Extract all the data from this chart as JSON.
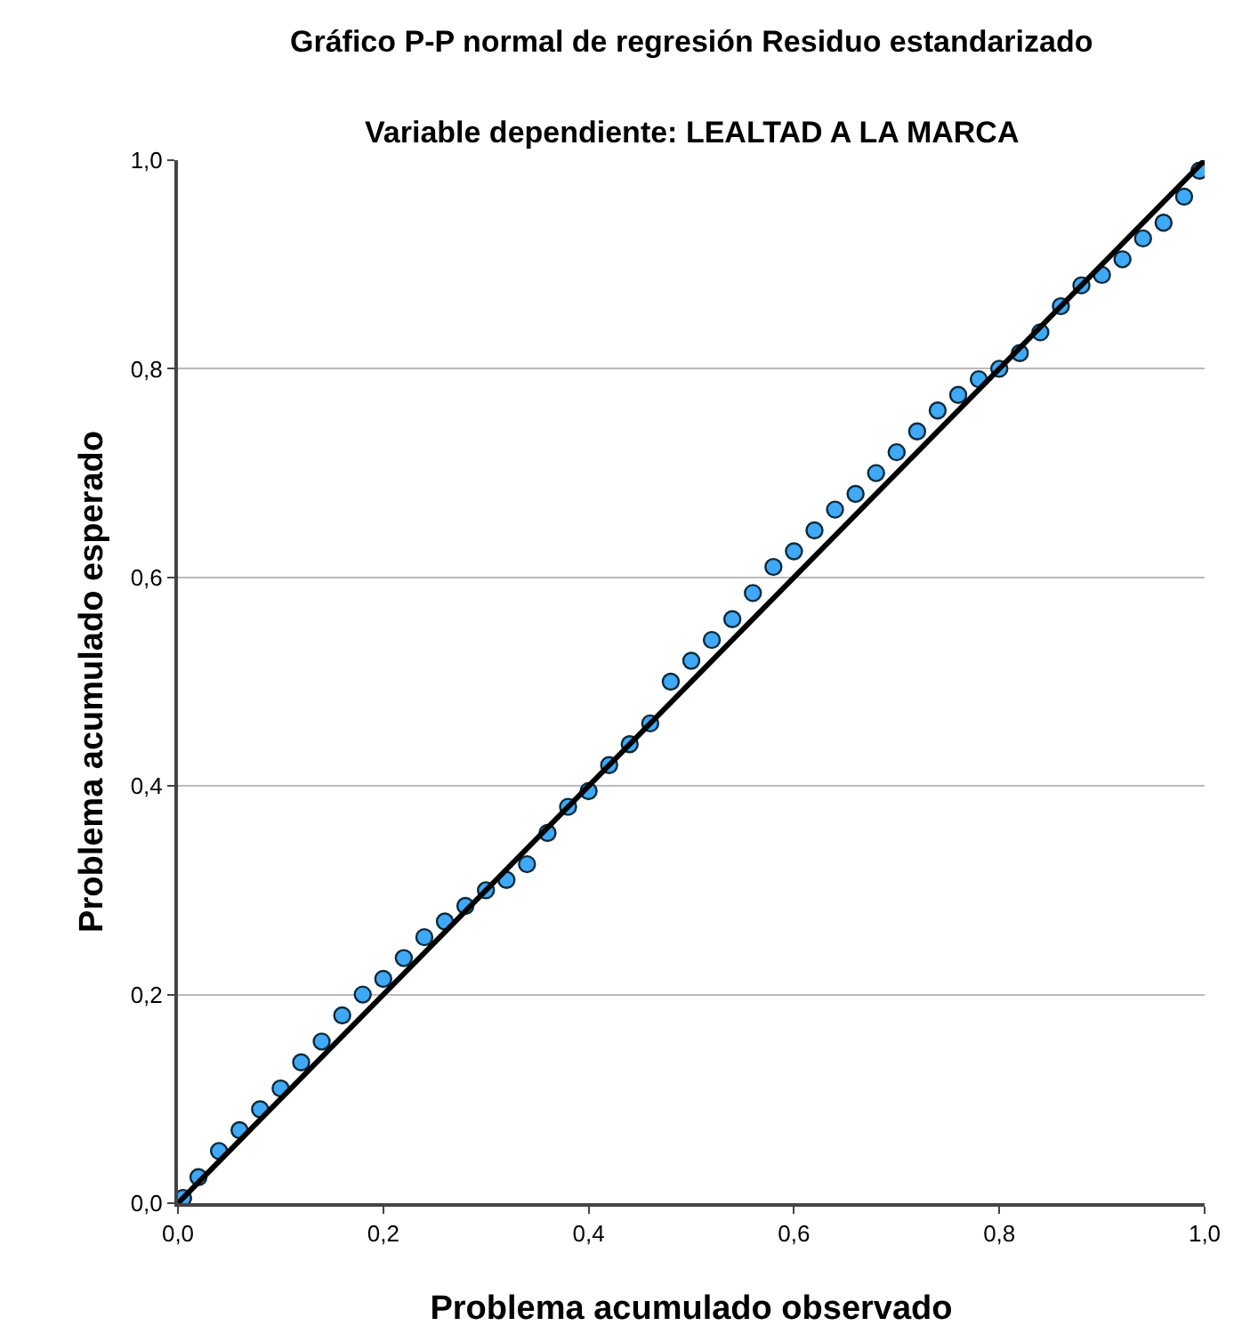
{
  "chart_data": {
    "type": "scatter",
    "title": "Gráfico P-P normal de regresión Residuo estandarizado",
    "subtitle": "Variable dependiente: LEALTAD A LA MARCA",
    "xlabel": "Problema acumulado observado",
    "ylabel": "Problema acumulado esperado",
    "xlim": [
      0,
      1
    ],
    "ylim": [
      0,
      1
    ],
    "xticks": [
      {
        "value": 0,
        "label": "0,0"
      },
      {
        "value": 0.2,
        "label": "0,2"
      },
      {
        "value": 0.4,
        "label": "0,4"
      },
      {
        "value": 0.6,
        "label": "0,6"
      },
      {
        "value": 0.8,
        "label": "0,8"
      },
      {
        "value": 1,
        "label": "1,0"
      }
    ],
    "yticks": [
      {
        "value": 0,
        "label": "0,0"
      },
      {
        "value": 0.2,
        "label": "0,2"
      },
      {
        "value": 0.4,
        "label": "0,4"
      },
      {
        "value": 0.6,
        "label": "0,6"
      },
      {
        "value": 0.8,
        "label": "0,8"
      },
      {
        "value": 1,
        "label": "1,0"
      }
    ],
    "grid": "y",
    "series": [
      {
        "marker": "circle",
        "color": "#3fa9f5",
        "x": [
          0.005,
          0.02,
          0.04,
          0.06,
          0.08,
          0.1,
          0.12,
          0.14,
          0.16,
          0.18,
          0.2,
          0.22,
          0.24,
          0.26,
          0.28,
          0.3,
          0.32,
          0.34,
          0.36,
          0.38,
          0.4,
          0.42,
          0.44,
          0.46,
          0.48,
          0.5,
          0.52,
          0.54,
          0.56,
          0.58,
          0.6,
          0.62,
          0.64,
          0.66,
          0.68,
          0.7,
          0.72,
          0.74,
          0.76,
          0.78,
          0.8,
          0.82,
          0.84,
          0.86,
          0.88,
          0.9,
          0.92,
          0.94,
          0.96,
          0.98,
          0.995
        ],
        "values": [
          0.005,
          0.025,
          0.05,
          0.07,
          0.09,
          0.11,
          0.135,
          0.155,
          0.18,
          0.2,
          0.215,
          0.235,
          0.255,
          0.27,
          0.285,
          0.3,
          0.31,
          0.325,
          0.355,
          0.38,
          0.395,
          0.42,
          0.44,
          0.46,
          0.5,
          0.52,
          0.54,
          0.56,
          0.585,
          0.61,
          0.625,
          0.645,
          0.665,
          0.68,
          0.7,
          0.72,
          0.74,
          0.76,
          0.775,
          0.79,
          0.8,
          0.815,
          0.835,
          0.86,
          0.88,
          0.89,
          0.905,
          0.925,
          0.94,
          0.965,
          0.99
        ]
      },
      {
        "type": "line",
        "marker": "none",
        "color": "#000000",
        "x": [
          0,
          1
        ],
        "values": [
          0,
          1
        ]
      }
    ]
  }
}
